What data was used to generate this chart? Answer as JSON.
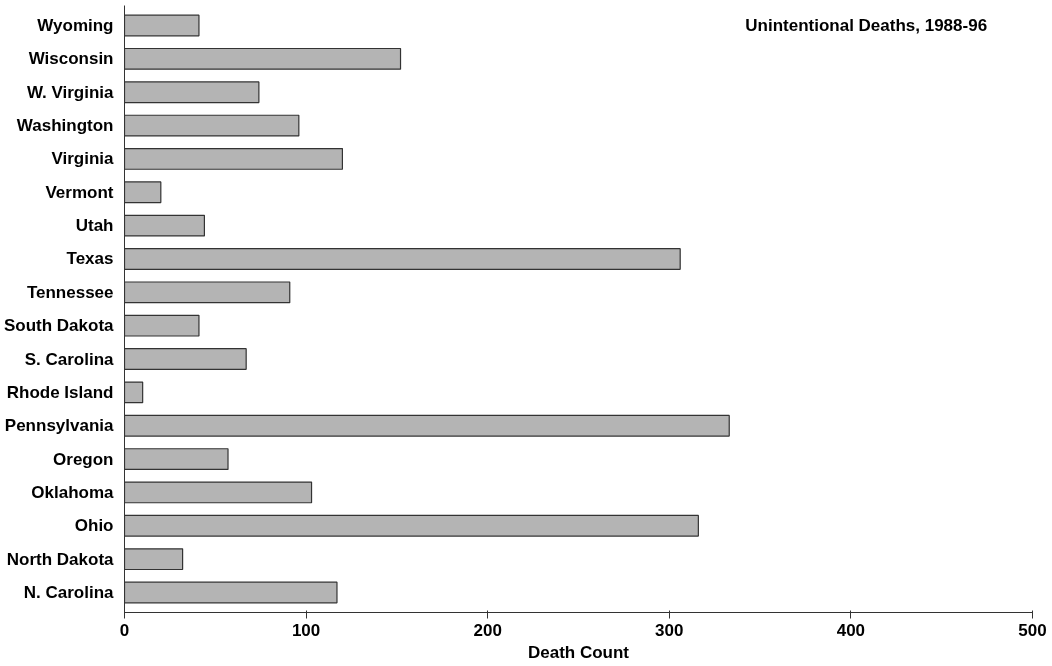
{
  "chart_data": {
    "type": "bar",
    "orientation": "horizontal",
    "title": "Unintentional Deaths, 1988-96",
    "xlabel": "Death Count",
    "categories": [
      "Wyoming",
      "Wisconsin",
      "W. Virginia",
      "Washington",
      "Virginia",
      "Vermont",
      "Utah",
      "Texas",
      "Tennessee",
      "South Dakota",
      "S. Carolina",
      "Rhode Island",
      "Pennsylvania",
      "Oregon",
      "Oklahoma",
      "Ohio",
      "North Dakota",
      "N. Carolina"
    ],
    "values": [
      41,
      152,
      74,
      96,
      120,
      20,
      44,
      306,
      91,
      41,
      67,
      10,
      333,
      57,
      103,
      316,
      32,
      117
    ],
    "color": "#b4b4b4",
    "xlim": [
      0,
      500
    ],
    "xticks": [
      0,
      100,
      200,
      300,
      400,
      500
    ],
    "grid": false
  }
}
